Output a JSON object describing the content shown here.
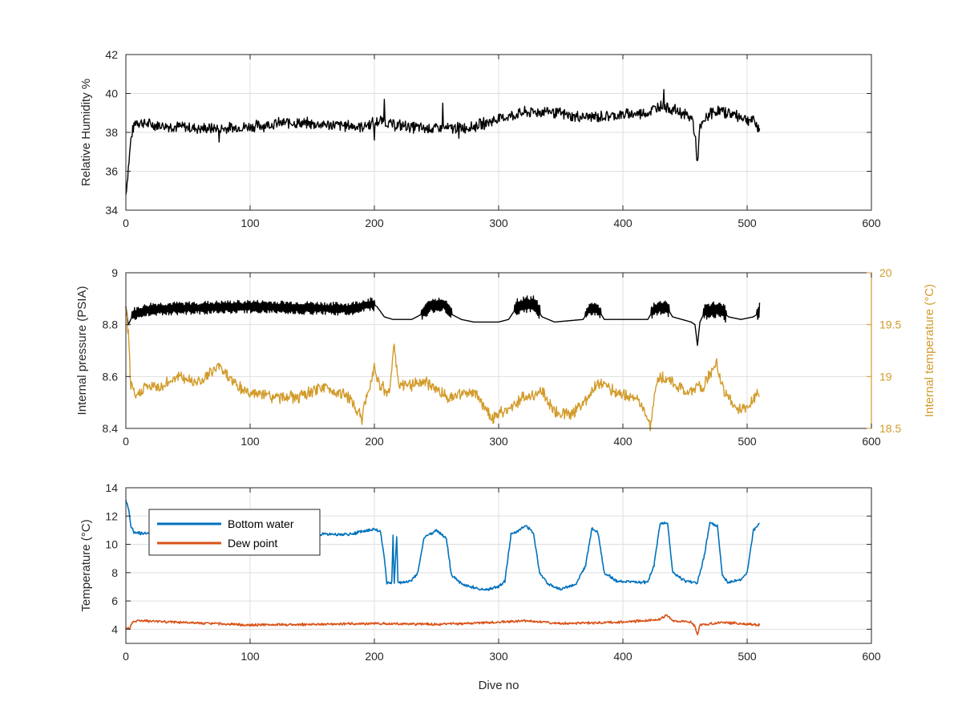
{
  "chart_data": [
    {
      "type": "line",
      "title": "",
      "xlabel": "",
      "ylabel": "Relative Humidity %",
      "xlim": [
        0,
        600
      ],
      "ylim": [
        34,
        42
      ],
      "xticks": [
        "0",
        "100",
        "200",
        "300",
        "400",
        "500",
        "600"
      ],
      "yticks": [
        "34",
        "36",
        "38",
        "40",
        "42"
      ],
      "grid": true,
      "series": [
        {
          "color": "#000000",
          "anchors": [
            [
              0,
              34.8
            ],
            [
              2,
              36.2
            ],
            [
              4,
              37.6
            ],
            [
              6,
              38.2
            ],
            [
              8,
              38.6
            ],
            [
              12,
              38.5
            ],
            [
              20,
              38.4
            ],
            [
              40,
              38.3
            ],
            [
              60,
              38.2
            ],
            [
              80,
              38.2
            ],
            [
              100,
              38.3
            ],
            [
              130,
              38.5
            ],
            [
              160,
              38.4
            ],
            [
              190,
              38.3
            ],
            [
              205,
              38.6
            ],
            [
              215,
              38.4
            ],
            [
              240,
              38.2
            ],
            [
              260,
              38.2
            ],
            [
              280,
              38.3
            ],
            [
              300,
              38.7
            ],
            [
              320,
              39.0
            ],
            [
              340,
              39.1
            ],
            [
              360,
              38.8
            ],
            [
              380,
              38.8
            ],
            [
              400,
              38.9
            ],
            [
              420,
              39.0
            ],
            [
              430,
              39.4
            ],
            [
              440,
              39.2
            ],
            [
              450,
              38.9
            ],
            [
              456,
              38.7
            ],
            [
              458,
              37.8
            ],
            [
              460,
              36.4
            ],
            [
              462,
              38.2
            ],
            [
              470,
              39.0
            ],
            [
              480,
              39.1
            ],
            [
              490,
              38.9
            ],
            [
              500,
              38.7
            ],
            [
              505,
              38.6
            ],
            [
              510,
              38.2
            ]
          ],
          "noise": 0.35,
          "spikes": [
            [
              433,
              40.2
            ],
            [
              208,
              39.7
            ],
            [
              255,
              39.5
            ],
            [
              75,
              37.5
            ],
            [
              200,
              37.6
            ],
            [
              268,
              37.7
            ]
          ]
        }
      ]
    },
    {
      "type": "line",
      "title": "",
      "xlabel": "",
      "ylabel": "Internal pressure (PSIA)",
      "ylabel_right": "Internal temperature (°C)",
      "xlim": [
        0,
        600
      ],
      "ylim": [
        8.4,
        9
      ],
      "ylim_right": [
        18.5,
        20
      ],
      "xticks": [
        "0",
        "100",
        "200",
        "300",
        "400",
        "500",
        "600"
      ],
      "yticks": [
        "8.4",
        "8.6",
        "8.8",
        "9"
      ],
      "yticks_right": [
        "18.5",
        "19",
        "19.5",
        "20"
      ],
      "grid": true,
      "series": [
        {
          "axis": "left",
          "color": "#000000",
          "anchors": [
            [
              0,
              8.87
            ],
            [
              2,
              8.8
            ],
            [
              6,
              8.84
            ],
            [
              20,
              8.86
            ],
            [
              100,
              8.87
            ],
            [
              180,
              8.86
            ],
            [
              198,
              8.88
            ],
            [
              202,
              8.87
            ],
            [
              208,
              8.83
            ],
            [
              215,
              8.82
            ],
            [
              230,
              8.82
            ],
            [
              238,
              8.84
            ],
            [
              245,
              8.87
            ],
            [
              255,
              8.88
            ],
            [
              262,
              8.84
            ],
            [
              270,
              8.82
            ],
            [
              280,
              8.81
            ],
            [
              300,
              8.81
            ],
            [
              308,
              8.82
            ],
            [
              315,
              8.87
            ],
            [
              328,
              8.88
            ],
            [
              335,
              8.83
            ],
            [
              345,
              8.81
            ],
            [
              368,
              8.82
            ],
            [
              373,
              8.86
            ],
            [
              380,
              8.86
            ],
            [
              385,
              8.82
            ],
            [
              420,
              8.82
            ],
            [
              425,
              8.86
            ],
            [
              435,
              8.87
            ],
            [
              440,
              8.83
            ],
            [
              455,
              8.81
            ],
            [
              458,
              8.8
            ],
            [
              460,
              8.72
            ],
            [
              462,
              8.81
            ],
            [
              466,
              8.85
            ],
            [
              478,
              8.86
            ],
            [
              485,
              8.83
            ],
            [
              495,
              8.82
            ],
            [
              505,
              8.83
            ],
            [
              508,
              8.84
            ],
            [
              510,
              8.86
            ]
          ],
          "oscillation": [
            [
              5,
              200,
              0.05
            ],
            [
              238,
              262,
              0.055
            ],
            [
              313,
              333,
              0.07
            ],
            [
              370,
              382,
              0.05
            ],
            [
              423,
              437,
              0.055
            ],
            [
              465,
              483,
              0.065
            ],
            [
              508,
              511,
              0.06
            ]
          ]
        },
        {
          "axis": "right",
          "color": "#d29b2b",
          "anchors": [
            [
              0,
              19.7
            ],
            [
              2,
              19.4
            ],
            [
              4,
              18.9
            ],
            [
              8,
              18.8
            ],
            [
              15,
              18.9
            ],
            [
              30,
              18.9
            ],
            [
              40,
              19.0
            ],
            [
              60,
              18.95
            ],
            [
              75,
              19.1
            ],
            [
              90,
              18.9
            ],
            [
              100,
              18.85
            ],
            [
              120,
              18.8
            ],
            [
              140,
              18.8
            ],
            [
              160,
              18.9
            ],
            [
              180,
              18.8
            ],
            [
              190,
              18.6
            ],
            [
              200,
              19.1
            ],
            [
              205,
              18.9
            ],
            [
              212,
              18.85
            ],
            [
              216,
              19.3
            ],
            [
              220,
              18.9
            ],
            [
              240,
              18.95
            ],
            [
              260,
              18.8
            ],
            [
              280,
              18.85
            ],
            [
              295,
              18.6
            ],
            [
              310,
              18.7
            ],
            [
              320,
              18.8
            ],
            [
              335,
              18.85
            ],
            [
              345,
              18.65
            ],
            [
              360,
              18.65
            ],
            [
              372,
              18.8
            ],
            [
              380,
              18.95
            ],
            [
              395,
              18.85
            ],
            [
              410,
              18.8
            ],
            [
              418,
              18.65
            ],
            [
              422,
              18.5
            ],
            [
              428,
              19.0
            ],
            [
              440,
              18.95
            ],
            [
              450,
              18.85
            ],
            [
              465,
              18.9
            ],
            [
              475,
              19.15
            ],
            [
              480,
              18.9
            ],
            [
              490,
              18.7
            ],
            [
              500,
              18.7
            ],
            [
              505,
              18.8
            ],
            [
              510,
              18.85
            ]
          ],
          "noise": 0.07
        }
      ]
    },
    {
      "type": "line",
      "title": "",
      "xlabel": "Dive no",
      "ylabel": "Temperature (°C)",
      "xlim": [
        0,
        600
      ],
      "ylim": [
        3,
        14
      ],
      "xticks": [
        "0",
        "100",
        "200",
        "300",
        "400",
        "500",
        "600"
      ],
      "yticks": [
        "4",
        "6",
        "8",
        "10",
        "12",
        "14"
      ],
      "grid": true,
      "legend": "top-left",
      "series": [
        {
          "name": "Bottom water",
          "color": "#0072bd",
          "anchors": [
            [
              0,
              13.1
            ],
            [
              2,
              12.6
            ],
            [
              4,
              11.3
            ],
            [
              7,
              10.8
            ],
            [
              20,
              10.8
            ],
            [
              100,
              10.7
            ],
            [
              180,
              10.7
            ],
            [
              200,
              11.1
            ],
            [
              205,
              10.9
            ],
            [
              208,
              9.0
            ],
            [
              210,
              7.3
            ],
            [
              214,
              7.3
            ],
            [
              215,
              10.6
            ],
            [
              216,
              7.3
            ],
            [
              218,
              10.6
            ],
            [
              219,
              7.3
            ],
            [
              230,
              7.4
            ],
            [
              235,
              8.0
            ],
            [
              240,
              10.5
            ],
            [
              250,
              11.0
            ],
            [
              258,
              10.4
            ],
            [
              262,
              7.8
            ],
            [
              272,
              7.1
            ],
            [
              290,
              6.8
            ],
            [
              300,
              7.0
            ],
            [
              305,
              7.4
            ],
            [
              310,
              10.7
            ],
            [
              322,
              11.3
            ],
            [
              328,
              10.8
            ],
            [
              333,
              8.0
            ],
            [
              340,
              7.2
            ],
            [
              350,
              6.8
            ],
            [
              362,
              7.2
            ],
            [
              370,
              8.5
            ],
            [
              375,
              11.1
            ],
            [
              380,
              10.8
            ],
            [
              385,
              8.0
            ],
            [
              395,
              7.4
            ],
            [
              420,
              7.3
            ],
            [
              425,
              8.5
            ],
            [
              430,
              11.5
            ],
            [
              436,
              11.5
            ],
            [
              440,
              8.0
            ],
            [
              450,
              7.4
            ],
            [
              460,
              7.3
            ],
            [
              465,
              9.0
            ],
            [
              470,
              11.5
            ],
            [
              476,
              11.3
            ],
            [
              480,
              7.8
            ],
            [
              485,
              7.3
            ],
            [
              495,
              7.5
            ],
            [
              500,
              8.0
            ],
            [
              505,
              11.0
            ],
            [
              510,
              11.5
            ]
          ],
          "noise": 0.12
        },
        {
          "name": "Dew point",
          "color": "#d95319",
          "anchors": [
            [
              0,
              4.1
            ],
            [
              3,
              4.0
            ],
            [
              5,
              4.5
            ],
            [
              10,
              4.6
            ],
            [
              40,
              4.5
            ],
            [
              100,
              4.3
            ],
            [
              150,
              4.35
            ],
            [
              200,
              4.4
            ],
            [
              250,
              4.35
            ],
            [
              300,
              4.5
            ],
            [
              320,
              4.6
            ],
            [
              350,
              4.4
            ],
            [
              400,
              4.5
            ],
            [
              430,
              4.7
            ],
            [
              435,
              5.0
            ],
            [
              440,
              4.6
            ],
            [
              455,
              4.5
            ],
            [
              458,
              4.2
            ],
            [
              460,
              3.6
            ],
            [
              462,
              4.3
            ],
            [
              480,
              4.5
            ],
            [
              500,
              4.35
            ],
            [
              510,
              4.3
            ]
          ],
          "noise": 0.1
        }
      ]
    }
  ]
}
